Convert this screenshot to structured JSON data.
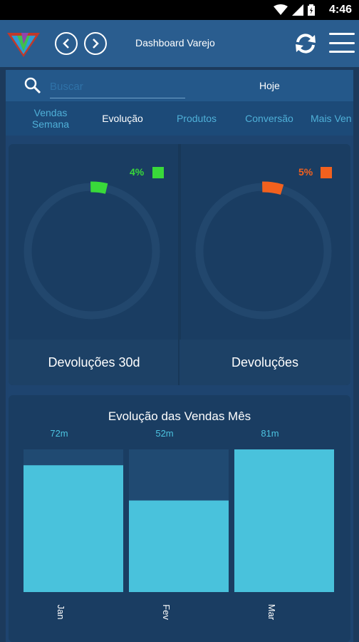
{
  "status_bar": {
    "time": "4:46"
  },
  "app_bar": {
    "title": "Dashboard Varejo"
  },
  "search": {
    "placeholder": "Buscar",
    "period": "Hoje"
  },
  "tabs": [
    {
      "label": "Vendas\nSemana"
    },
    {
      "label": "Evolução"
    },
    {
      "label": "Produtos"
    },
    {
      "label": "Conversão"
    },
    {
      "label": "Mais Ven"
    }
  ],
  "gauges": [
    {
      "label": "Devoluções 30d",
      "percent_label": "4%",
      "value": 0.04,
      "color": "#39d93a"
    },
    {
      "label": "Devoluções",
      "percent_label": "5%",
      "value": 0.05,
      "color": "#f2611e"
    }
  ],
  "colors": {
    "track": "#22476d",
    "bar": "#49c2dc",
    "bar_bg": "#204a72",
    "value_text": "#4cc3e0"
  },
  "chart_data": {
    "type": "bar",
    "title": "Evolução das Vendas Mês",
    "categories": [
      "Jan",
      "Fev",
      "Mar"
    ],
    "values": [
      72,
      52,
      81
    ],
    "value_labels": [
      "72m",
      "52m",
      "81m"
    ],
    "ylim": [
      0,
      81
    ]
  }
}
